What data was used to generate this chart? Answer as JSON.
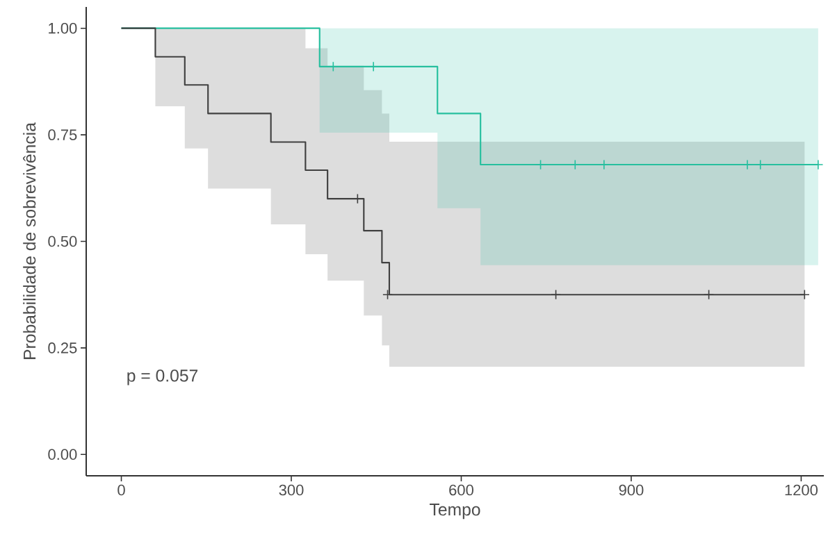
{
  "chart_data": {
    "type": "step",
    "xlabel": "Tempo",
    "ylabel": "Probabilidade de sobrevivência",
    "xlim": [
      -62,
      1240
    ],
    "ylim": [
      -0.05,
      1.05
    ],
    "xticks": [
      0,
      300,
      600,
      900,
      1200
    ],
    "yticks": [
      {
        "value": 0,
        "label": "0.00"
      },
      {
        "value": 0.25,
        "label": "0.25"
      },
      {
        "value": 0.5,
        "label": "0.50"
      },
      {
        "value": 0.75,
        "label": "0.75"
      },
      {
        "value": 1,
        "label": "1.00"
      }
    ],
    "annotations": [
      "p = 0.057"
    ],
    "series": [
      {
        "color": "#404040",
        "x": [
          0,
          60,
          112,
          153,
          264,
          325,
          364,
          428,
          460,
          473,
          1206
        ],
        "values": [
          1,
          0.933,
          0.867,
          0.8,
          0.733,
          0.667,
          0.6,
          0.525,
          0.45,
          0.375,
          0.375
        ],
        "lower": [
          1,
          0.817,
          0.718,
          0.624,
          0.54,
          0.47,
          0.408,
          0.326,
          0.256,
          0.206,
          0.206
        ],
        "upper": [
          1,
          1,
          1,
          1,
          1,
          0.953,
          0.912,
          0.855,
          0.8,
          0.734,
          0.734
        ]
      },
      {
        "color": "#26bf9e",
        "x": [
          0,
          350,
          558,
          634,
          1230
        ],
        "values": [
          1,
          0.91,
          0.8,
          0.68,
          0.68
        ],
        "lower": [
          1,
          0.755,
          0.578,
          0.444,
          0.444
        ],
        "upper": [
          1,
          1,
          1,
          1,
          1
        ]
      },
      {
        "type": "scatter",
        "marker": "cross",
        "color": "#404040",
        "x": [
          417,
          470,
          767,
          1037,
          1206
        ],
        "values": [
          0.6,
          0.375,
          0.375,
          0.375,
          0.375
        ]
      },
      {
        "type": "scatter",
        "marker": "cross",
        "color": "#26bf9e",
        "x": [
          374,
          445,
          740,
          801,
          852,
          1105,
          1128,
          1230
        ],
        "values": [
          0.91,
          0.91,
          0.68,
          0.68,
          0.68,
          0.68,
          0.68,
          0.68
        ]
      }
    ]
  }
}
